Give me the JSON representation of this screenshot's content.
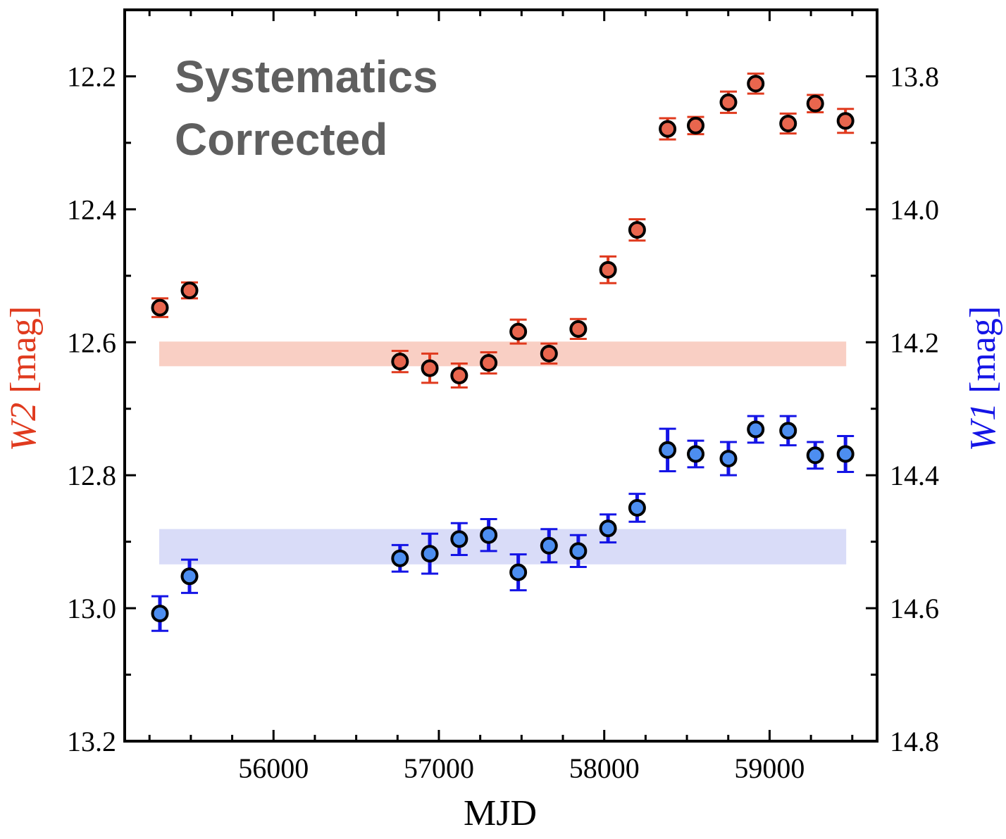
{
  "chart_data": {
    "type": "scatter",
    "annotation": [
      "Systematics",
      "Corrected"
    ],
    "xlabel": "MJD",
    "ylabel_left": {
      "name": "W2",
      "unit": " [mag]"
    },
    "ylabel_right": {
      "name": "W1",
      "unit": " [mag]"
    },
    "xlim": [
      55100,
      59650
    ],
    "xticks": [
      56000,
      57000,
      58000,
      59000
    ],
    "ylim_left": [
      12.1,
      13.2
    ],
    "yticks_left": [
      "12.2",
      "12.4",
      "12.6",
      "12.8",
      "13.0",
      "13.2"
    ],
    "ylim_right": [
      13.7,
      14.8
    ],
    "yticks_right": [
      "13.8",
      "14.0",
      "14.2",
      "14.4",
      "14.6",
      "14.8"
    ],
    "y_inverted": true,
    "series": [
      {
        "name": "W2",
        "axis": "left",
        "color": "#e8664e",
        "errorbar_color": "#e03a1e",
        "band": [
          12.6,
          12.635
        ],
        "band_color": "#f9cfc4",
        "x": [
          55313,
          55492,
          56765,
          56945,
          57123,
          57301,
          57480,
          57666,
          57843,
          58023,
          58199,
          58383,
          58553,
          58751,
          58916,
          59112,
          59276,
          59459
        ],
        "y": [
          12.548,
          12.522,
          12.629,
          12.639,
          12.65,
          12.631,
          12.584,
          12.617,
          12.58,
          12.491,
          12.431,
          12.279,
          12.274,
          12.239,
          12.211,
          12.271,
          12.241,
          12.267
        ],
        "err": [
          0.014,
          0.012,
          0.016,
          0.022,
          0.018,
          0.016,
          0.018,
          0.015,
          0.015,
          0.02,
          0.016,
          0.016,
          0.013,
          0.016,
          0.015,
          0.015,
          0.013,
          0.018
        ]
      },
      {
        "name": "W1",
        "axis": "right",
        "color": "#4d8ef0",
        "errorbar_color": "#1414e6",
        "band": [
          14.482,
          14.533
        ],
        "band_color": "#d9dcf8",
        "x": [
          55313,
          55492,
          56765,
          56945,
          57123,
          57301,
          57480,
          57666,
          57843,
          58023,
          58199,
          58383,
          58553,
          58751,
          58916,
          59112,
          59276,
          59459
        ],
        "y": [
          14.608,
          14.552,
          14.525,
          14.518,
          14.496,
          14.49,
          14.546,
          14.506,
          14.514,
          14.48,
          14.449,
          14.362,
          14.368,
          14.375,
          14.331,
          14.333,
          14.37,
          14.368
        ],
        "err": [
          0.026,
          0.025,
          0.02,
          0.03,
          0.024,
          0.024,
          0.027,
          0.025,
          0.024,
          0.021,
          0.021,
          0.032,
          0.02,
          0.025,
          0.02,
          0.022,
          0.02,
          0.027
        ]
      }
    ]
  }
}
